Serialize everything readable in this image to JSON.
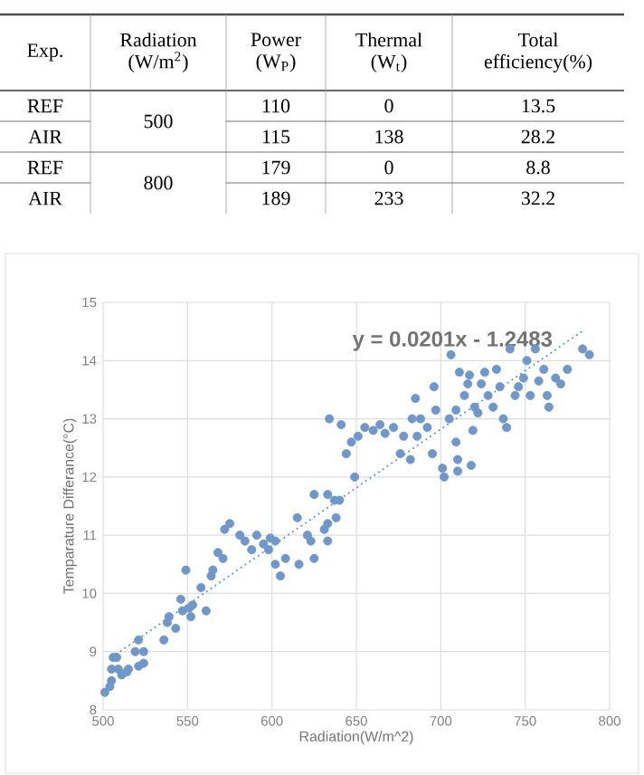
{
  "chart_data": [
    {
      "type": "other",
      "categories": [
        "Exp.",
        "Radiation (W/m$^{2}$)",
        "Power (W$_{P}$)",
        "Thermal (W$_{t}$)",
        "Total efficiency(%)"
      ],
      "y_categories": [
        "REF",
        "AIR",
        "REF",
        "AIR"
      ],
      "cell_labels": [
        [
          "500",
          "110",
          "0",
          "13.5"
        ],
        [
          null,
          "115",
          "138",
          "28.2"
        ],
        [
          "800",
          "179",
          "0",
          "8.8"
        ],
        [
          null,
          "189",
          "233",
          "32.2"
        ]
      ]
    },
    {
      "type": "scatter",
      "xlabel": "Radiation(W/m^2)",
      "ylabel": "Temparature Differance(°C)",
      "annotations": [
        "y = 0.0201x - 1.2483"
      ],
      "xlim": [
        500,
        800
      ],
      "ylim": [
        8,
        15
      ],
      "xticks": [
        500,
        550,
        600,
        650,
        700,
        750,
        800
      ],
      "yticks": [
        8,
        9,
        10,
        11,
        12,
        13,
        14,
        15
      ],
      "grid": true,
      "series": [
        {
          "marker": "circle",
          "color": "#7097c9",
          "x": [
            501,
            504,
            505,
            505,
            506,
            508,
            509,
            511,
            514,
            515,
            519,
            521,
            524,
            524,
            521,
            536,
            538,
            539,
            543,
            546,
            547,
            549,
            551,
            552,
            553,
            558,
            561,
            564,
            565,
            568,
            571,
            572,
            575,
            581,
            584,
            588,
            591,
            595,
            598,
            599,
            602,
            602,
            605,
            608,
            615,
            616,
            621,
            623,
            625,
            631,
            633,
            633,
            638,
            625,
            633,
            637,
            640,
            649,
            634,
            641,
            644,
            647,
            651,
            655,
            660,
            664,
            667,
            672,
            676,
            678,
            682,
            683,
            685,
            686,
            688,
            692,
            696,
            695,
            697,
            701,
            702,
            705,
            706,
            709,
            710,
            710,
            711,
            714,
            716,
            719,
            720,
            722,
            724,
            726,
            728,
            731,
            733,
            735,
            737,
            739,
            741,
            744,
            746,
            749,
            751,
            753,
            756,
            758,
            761,
            763,
            764,
            768,
            771,
            775,
            784,
            788,
            718,
            709,
            717
          ],
          "values": [
            8.3,
            8.4,
            8.5,
            8.7,
            8.9,
            8.9,
            8.7,
            8.6,
            8.65,
            8.7,
            9.0,
            9.2,
            8.8,
            9.0,
            8.75,
            9.2,
            9.5,
            9.6,
            9.4,
            9.9,
            9.7,
            10.4,
            9.75,
            9.6,
            9.8,
            10.1,
            9.7,
            10.3,
            10.4,
            10.7,
            10.6,
            11.1,
            11.2,
            11.0,
            10.9,
            10.75,
            11.0,
            10.85,
            10.75,
            10.95,
            10.9,
            10.5,
            10.3,
            10.6,
            11.3,
            10.5,
            11.0,
            10.9,
            10.6,
            11.1,
            10.9,
            11.2,
            11.3,
            11.7,
            11.7,
            11.6,
            11.6,
            12.0,
            13.0,
            12.9,
            12.4,
            12.6,
            12.7,
            12.85,
            12.8,
            12.9,
            12.75,
            12.85,
            12.4,
            12.7,
            12.3,
            13.0,
            13.35,
            12.7,
            13.0,
            12.85,
            13.55,
            12.4,
            13.15,
            12.15,
            12.0,
            13.0,
            14.1,
            12.6,
            12.3,
            12.1,
            13.8,
            13.4,
            13.6,
            12.8,
            13.2,
            13.1,
            13.6,
            13.8,
            13.4,
            13.2,
            13.85,
            13.55,
            13.0,
            12.85,
            14.2,
            13.4,
            13.55,
            13.7,
            14.0,
            13.4,
            14.2,
            13.65,
            13.85,
            13.4,
            13.2,
            13.7,
            13.6,
            13.85,
            14.2,
            14.1,
            12.2,
            13.15,
            13.75
          ]
        },
        {
          "type": "line",
          "marker": "none",
          "line_style": "dotted",
          "color": "#5b8bd0",
          "x": [
            505,
            785
          ],
          "values": [
            8.9,
            14.53
          ]
        }
      ]
    }
  ]
}
